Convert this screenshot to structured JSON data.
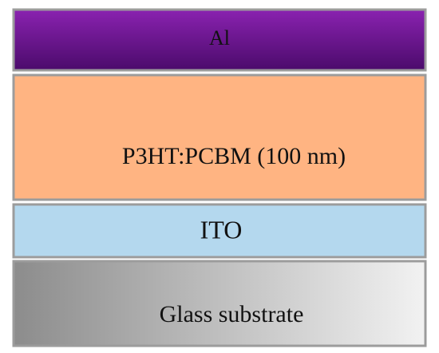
{
  "layers": [
    {
      "label": "Al"
    },
    {
      "label": "P3HT:PCBM (100 nm)"
    },
    {
      "label": "ITO"
    },
    {
      "label": "Glass substrate"
    }
  ]
}
